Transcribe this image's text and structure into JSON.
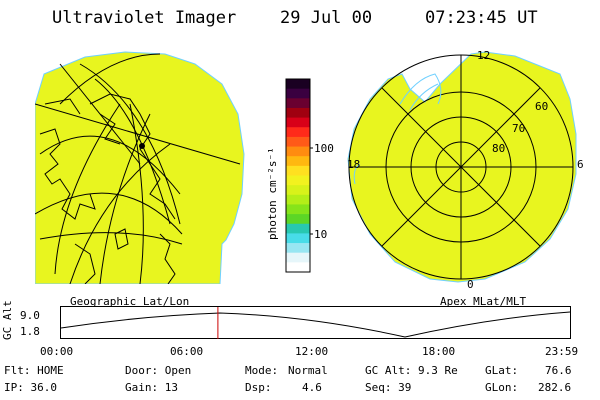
{
  "header": {
    "instrument": "Ultraviolet Imager",
    "date": "29 Jul 00",
    "time": "07:23:45 UT"
  },
  "geo_panel": {
    "label": "Geographic Lat/Lon",
    "fill_color": "#e8f51f"
  },
  "colorbar": {
    "unit_label": "photon cm⁻²s⁻¹",
    "tick_labels": [
      "100",
      "10"
    ],
    "colors_top_to_bottom": [
      "#1a0022",
      "#3a0040",
      "#6a0030",
      "#a00010",
      "#d80018",
      "#ff2a1a",
      "#ff5a18",
      "#ff8c10",
      "#ffb810",
      "#ffe020",
      "#f2f21f",
      "#d8f21a",
      "#b4ee18",
      "#86e41a",
      "#5cd626",
      "#28c8b0",
      "#48dce8",
      "#98e6f2",
      "#e6f6fa",
      "#ffffff"
    ]
  },
  "polar_panel": {
    "label": "Apex MLat/MLT",
    "mlt_labels": [
      "12",
      "18",
      "6",
      "0"
    ],
    "mlat_labels": [
      "60",
      "70",
      "80"
    ],
    "fill_color": "#e8f51f"
  },
  "timeline": {
    "axis_label": "GC Alt",
    "y_max_label": "9.0",
    "y_min_label": "1.8",
    "time_labels": [
      "00:00",
      "06:00",
      "12:00",
      "18:00",
      "23:59"
    ],
    "current_time_hours": 7.396,
    "marker_color": "#cc0000"
  },
  "status": {
    "flt": "Flt: HOME",
    "ip": "IP: 36.0",
    "door": "Door: Open",
    "gain": "Gain: 13",
    "mode_label": "Mode:",
    "mode_value": "Normal",
    "dsp_label": "Dsp:",
    "dsp_value": "4.6",
    "gc_alt": "GC Alt: 9.3 Re",
    "seq": "Seq: 39",
    "glat_label": "GLat:",
    "glat_value": "76.6",
    "glon_label": "GLon:",
    "glon_value": "282.6"
  }
}
